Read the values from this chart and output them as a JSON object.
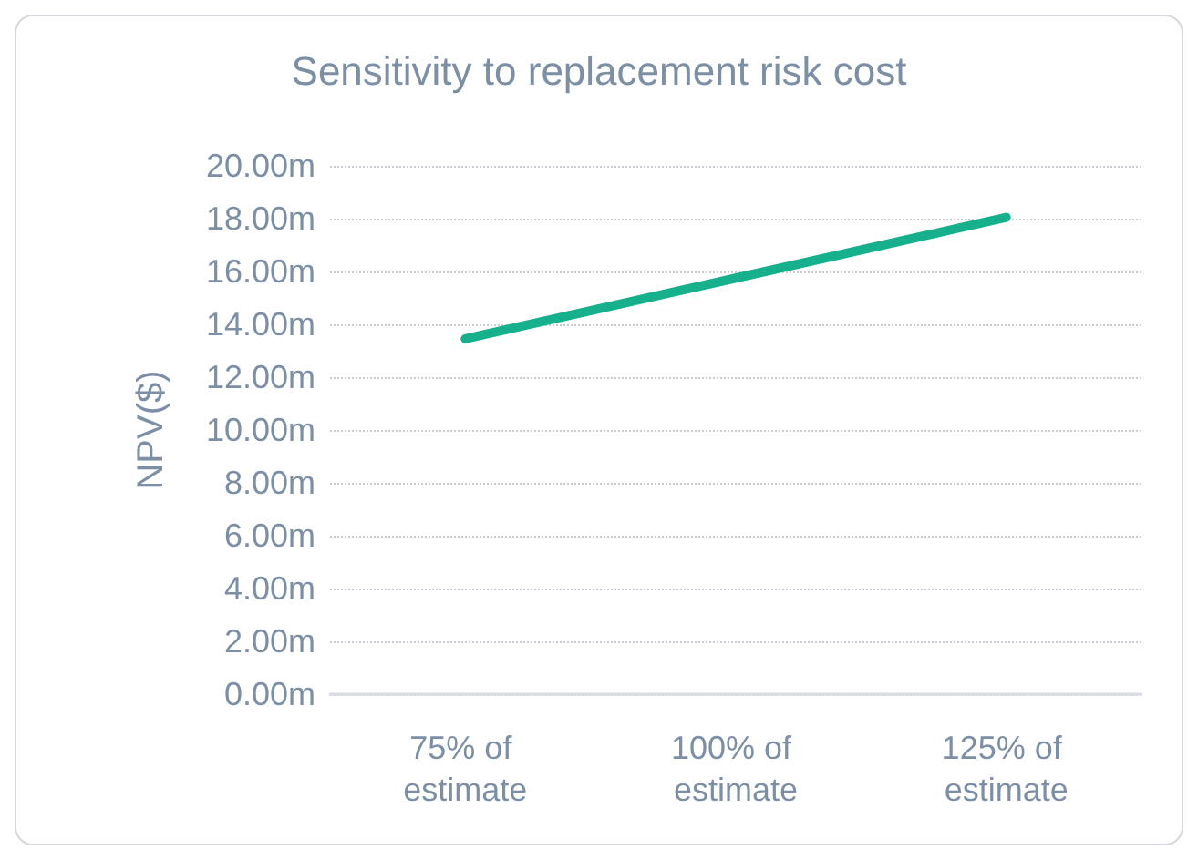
{
  "chart_data": {
    "type": "line",
    "title": "Sensitivity to replacement risk cost",
    "ylabel": "NPV($)",
    "categories": [
      "75% of estimate",
      "100% of estimate",
      "125% of estimate"
    ],
    "series": [
      {
        "color": "#16b08c",
        "values": [
          13.45,
          15.75,
          18.05
        ]
      }
    ],
    "ylim": [
      0,
      20
    ],
    "yticks": [
      {
        "value": 0,
        "label": "0.00m"
      },
      {
        "value": 2,
        "label": "2.00m"
      },
      {
        "value": 4,
        "label": "4.00m"
      },
      {
        "value": 6,
        "label": "6.00m"
      },
      {
        "value": 8,
        "label": "8.00m"
      },
      {
        "value": 10,
        "label": "10.00m"
      },
      {
        "value": 12,
        "label": "12.00m"
      },
      {
        "value": 14,
        "label": "14.00m"
      },
      {
        "value": 16,
        "label": "16.00m"
      },
      {
        "value": 18,
        "label": "18.00m"
      },
      {
        "value": 20,
        "label": "20.00m"
      }
    ],
    "grid": "y",
    "marker": "none",
    "line_style": "solid"
  }
}
